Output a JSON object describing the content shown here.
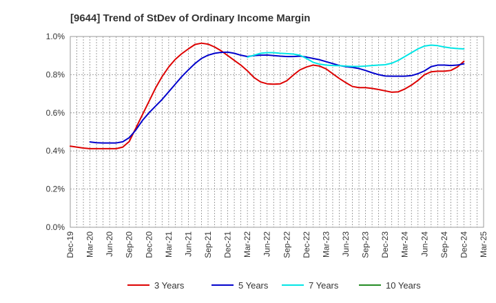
{
  "chart_data": {
    "type": "line",
    "title": "[9644]  Trend of StDev of Ordinary Income Margin",
    "xlabel": "",
    "ylabel": "",
    "x_ticks": [
      "Dec-19",
      "Mar-20",
      "Jun-20",
      "Sep-20",
      "Dec-20",
      "Mar-21",
      "Jun-21",
      "Sep-21",
      "Dec-21",
      "Mar-22",
      "Jun-22",
      "Sep-22",
      "Dec-22",
      "Mar-23",
      "Jun-23",
      "Sep-23",
      "Dec-23",
      "Mar-24",
      "Jun-24",
      "Sep-24",
      "Dec-24",
      "Mar-25"
    ],
    "y_ticks": [
      "0.0%",
      "0.2%",
      "0.4%",
      "0.6%",
      "0.8%",
      "1.0%"
    ],
    "ylim": [
      0,
      1.0
    ],
    "y_unit": "%",
    "grid": true,
    "legend_position": "bottom",
    "series": [
      {
        "name": "3 Years",
        "color": "#dd0000",
        "x": [
          "Dec-19",
          "Jan-20",
          "Feb-20",
          "Mar-20",
          "Apr-20",
          "May-20",
          "Jun-20",
          "Jul-20",
          "Aug-20",
          "Sep-20",
          "Oct-20",
          "Nov-20",
          "Dec-20",
          "Jan-21",
          "Feb-21",
          "Mar-21",
          "Apr-21",
          "May-21",
          "Jun-21",
          "Jul-21",
          "Aug-21",
          "Sep-21",
          "Oct-21",
          "Nov-21",
          "Dec-21",
          "Jan-22",
          "Feb-22",
          "Mar-22",
          "Apr-22",
          "May-22",
          "Jun-22",
          "Jul-22",
          "Aug-22",
          "Sep-22",
          "Oct-22",
          "Nov-22",
          "Dec-22",
          "Jan-23",
          "Feb-23",
          "Mar-23",
          "Apr-23",
          "May-23",
          "Jun-23",
          "Jul-23",
          "Aug-23",
          "Sep-23",
          "Oct-23",
          "Nov-23",
          "Dec-23",
          "Jan-24",
          "Feb-24",
          "Mar-24",
          "Apr-24",
          "May-24",
          "Jun-24",
          "Jul-24",
          "Aug-24",
          "Sep-24",
          "Oct-24",
          "Nov-24",
          "Dec-24"
        ],
        "values": [
          0.425,
          0.42,
          0.415,
          0.412,
          0.412,
          0.412,
          0.412,
          0.412,
          0.42,
          0.45,
          0.52,
          0.59,
          0.66,
          0.73,
          0.79,
          0.84,
          0.88,
          0.91,
          0.935,
          0.958,
          0.965,
          0.96,
          0.945,
          0.925,
          0.9,
          0.875,
          0.85,
          0.82,
          0.785,
          0.762,
          0.752,
          0.75,
          0.752,
          0.768,
          0.798,
          0.825,
          0.84,
          0.85,
          0.845,
          0.83,
          0.805,
          0.78,
          0.758,
          0.738,
          0.732,
          0.732,
          0.728,
          0.722,
          0.715,
          0.708,
          0.71,
          0.725,
          0.745,
          0.77,
          0.8,
          0.815,
          0.818,
          0.818,
          0.822,
          0.84,
          0.87
        ]
      },
      {
        "name": "5 Years",
        "color": "#0000cc",
        "x": [
          "Dec-19",
          "Jan-20",
          "Feb-20",
          "Mar-20",
          "Apr-20",
          "May-20",
          "Jun-20",
          "Jul-20",
          "Aug-20",
          "Sep-20",
          "Oct-20",
          "Nov-20",
          "Dec-20",
          "Jan-21",
          "Feb-21",
          "Mar-21",
          "Apr-21",
          "May-21",
          "Jun-21",
          "Jul-21",
          "Aug-21",
          "Sep-21",
          "Oct-21",
          "Nov-21",
          "Dec-21",
          "Jan-22",
          "Feb-22",
          "Mar-22",
          "Apr-22",
          "May-22",
          "Jun-22",
          "Jul-22",
          "Aug-22",
          "Sep-22",
          "Oct-22",
          "Nov-22",
          "Dec-22",
          "Jan-23",
          "Feb-23",
          "Mar-23",
          "Apr-23",
          "May-23",
          "Jun-23",
          "Jul-23",
          "Aug-23",
          "Sep-23",
          "Oct-23",
          "Nov-23",
          "Dec-23",
          "Jan-24",
          "Feb-24",
          "Mar-24",
          "Apr-24",
          "May-24",
          "Jun-24",
          "Jul-24",
          "Aug-24",
          "Sep-24",
          "Oct-24",
          "Nov-24",
          "Dec-24"
        ],
        "values": [
          null,
          null,
          null,
          0.447,
          0.443,
          0.442,
          0.442,
          0.442,
          0.448,
          0.47,
          0.51,
          0.56,
          0.6,
          0.635,
          0.67,
          0.71,
          0.75,
          0.79,
          0.825,
          0.858,
          0.885,
          0.902,
          0.912,
          0.917,
          0.918,
          0.912,
          0.902,
          0.895,
          0.9,
          0.902,
          0.903,
          0.9,
          0.897,
          0.895,
          0.895,
          0.897,
          0.892,
          0.885,
          0.878,
          0.868,
          0.858,
          0.848,
          0.842,
          0.838,
          0.832,
          0.822,
          0.81,
          0.8,
          0.793,
          0.792,
          0.792,
          0.792,
          0.795,
          0.805,
          0.82,
          0.842,
          0.85,
          0.85,
          0.848,
          0.85,
          0.857
        ]
      },
      {
        "name": "7 Years",
        "color": "#00e5e5",
        "x": [
          "Dec-21",
          "Jan-22",
          "Feb-22",
          "Mar-22",
          "Apr-22",
          "May-22",
          "Jun-22",
          "Jul-22",
          "Aug-22",
          "Sep-22",
          "Oct-22",
          "Nov-22",
          "Dec-22",
          "Jan-23",
          "Feb-23",
          "Mar-23",
          "Apr-23",
          "May-23",
          "Jun-23",
          "Jul-23",
          "Aug-23",
          "Sep-23",
          "Oct-23",
          "Nov-23",
          "Dec-23",
          "Jan-24",
          "Feb-24",
          "Mar-24",
          "Apr-24",
          "May-24",
          "Jun-24",
          "Jul-24",
          "Aug-24",
          "Sep-24",
          "Oct-24",
          "Nov-24",
          "Dec-24"
        ],
        "values": [
          null,
          null,
          null,
          0.892,
          0.902,
          0.912,
          0.915,
          0.915,
          0.912,
          0.91,
          0.908,
          0.902,
          0.885,
          0.865,
          0.855,
          0.85,
          0.848,
          0.847,
          0.845,
          0.843,
          0.843,
          0.845,
          0.848,
          0.85,
          0.852,
          0.86,
          0.875,
          0.895,
          0.915,
          0.935,
          0.95,
          0.955,
          0.952,
          0.945,
          0.94,
          0.937,
          0.935
        ]
      },
      {
        "name": "10 Years",
        "color": "#228b22",
        "x": [],
        "values": []
      }
    ]
  }
}
